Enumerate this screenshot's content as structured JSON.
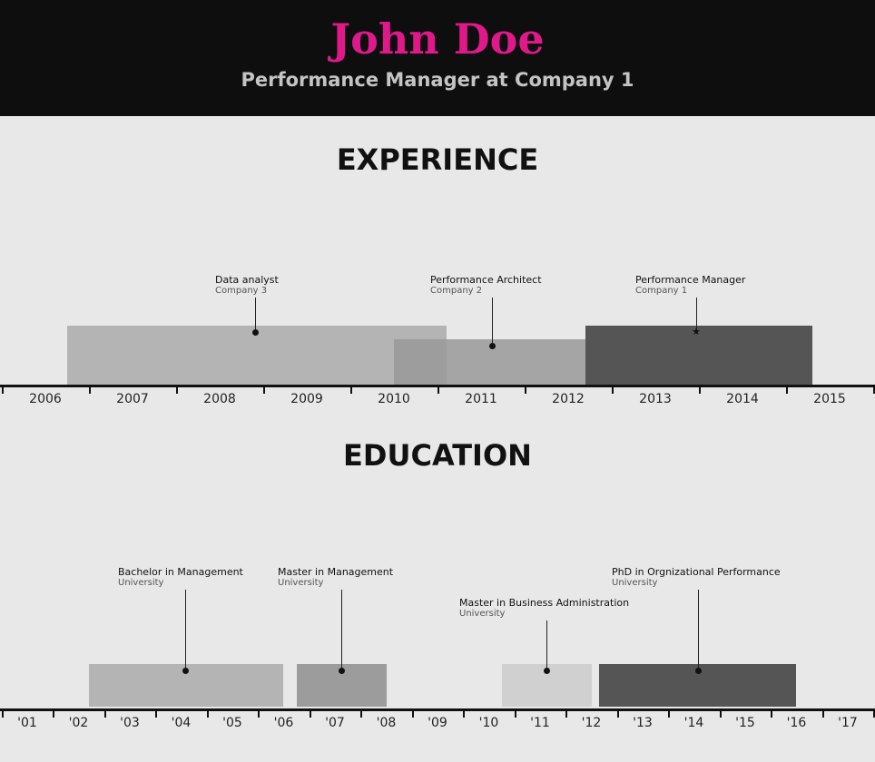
{
  "header": {
    "name": "John Doe",
    "subtitle": "Performance Manager at Company 1",
    "name_color": "#e0198b"
  },
  "experience": {
    "title": "EXPERIENCE",
    "years": [
      "2006",
      "2007",
      "2008",
      "2009",
      "2010",
      "2011",
      "2012",
      "2013",
      "2014",
      "2015"
    ],
    "items": [
      {
        "title": "Data analyst",
        "org": "Company 3",
        "start": 2006.25,
        "end": 2010.6,
        "current": false,
        "color": "#b4b4b4"
      },
      {
        "title": "Performance Architect",
        "org": "Company 2",
        "start": 2010.0,
        "end": 2012.35,
        "current": false,
        "color": "#999999"
      },
      {
        "title": "Performance Manager",
        "org": "Company 1",
        "start": 2012.2,
        "end": 2014.8,
        "current": true,
        "color": "#555555"
      }
    ]
  },
  "education": {
    "title": "EDUCATION",
    "years": [
      "'01",
      "'02",
      "'03",
      "'04",
      "'05",
      "'06",
      "'07",
      "'08",
      "'09",
      "'10",
      "'11",
      "'12",
      "'13",
      "'14",
      "'15",
      "'16",
      "'17"
    ],
    "items": [
      {
        "title": "Bachelor in Management",
        "org": "University",
        "start": 2002.2,
        "end": 2006.0,
        "color": "#b4b4b4"
      },
      {
        "title": "Master in Management",
        "org": "University",
        "start": 2006.25,
        "end": 2008.0,
        "color": "#9c9c9c"
      },
      {
        "title": "Master in Business Administration",
        "org": "University",
        "start": 2010.25,
        "end": 2012.0,
        "color": "#d0d0d0"
      },
      {
        "title": "PhD in Orgnizational Performance",
        "org": "University",
        "start": 2012.15,
        "end": 2016.0,
        "color": "#555555"
      }
    ]
  }
}
